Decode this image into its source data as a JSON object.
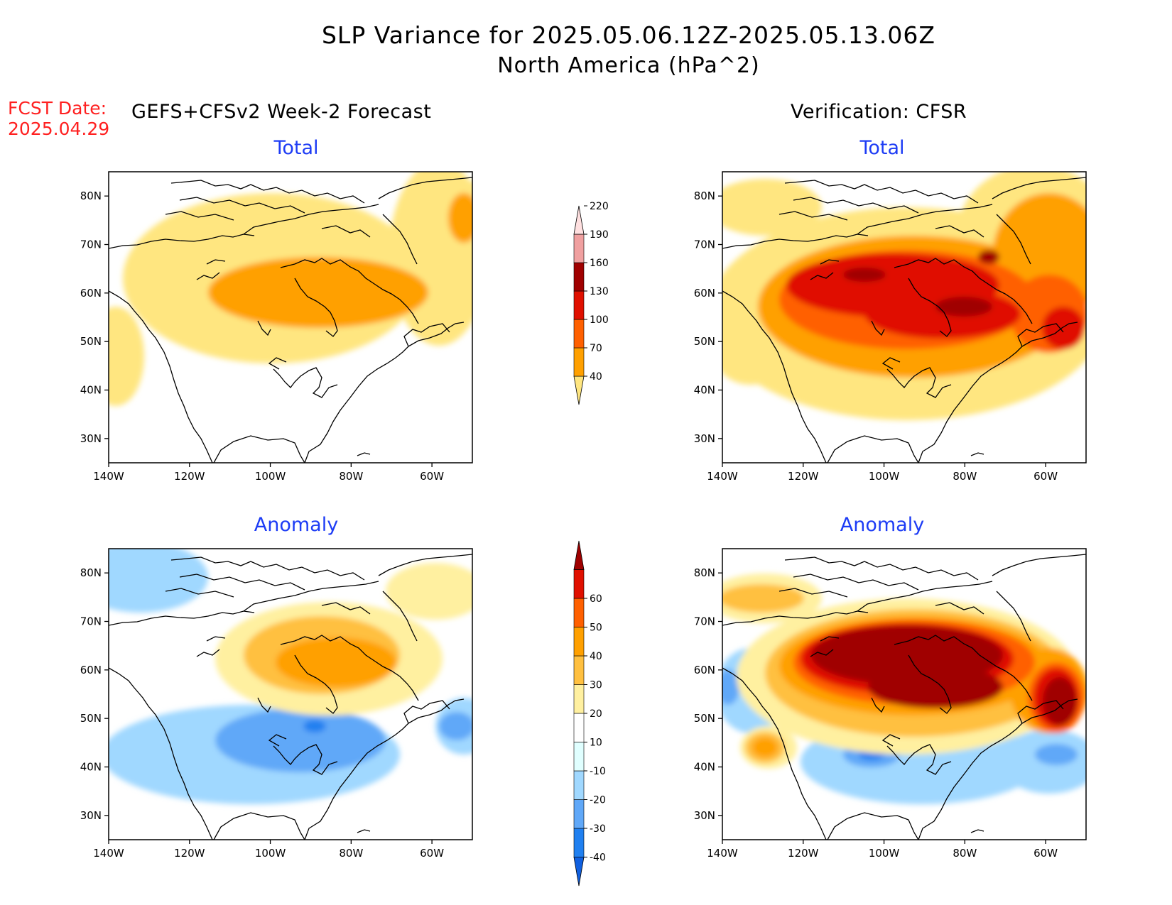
{
  "title": "SLP Variance for 2025.05.06.12Z-2025.05.13.06Z",
  "subtitle": "North America (hPa^2)",
  "fcst_date_label": "FCST Date:\n2025.04.29",
  "forecast_title": "GEFS+CFSv2 Week-2 Forecast",
  "verification_title": "Verification: CFSR",
  "panels": [
    {
      "id": "forecast-total",
      "label": "Total"
    },
    {
      "id": "verification-total",
      "label": "Total"
    },
    {
      "id": "forecast-anomaly",
      "label": "Anomaly"
    },
    {
      "id": "verification-anomaly",
      "label": "Anomaly"
    }
  ],
  "map_axes": {
    "lon_ticks": [
      "140W",
      "120W",
      "100W",
      "80W",
      "60W"
    ],
    "lat_ticks": [
      "80N",
      "70N",
      "60N",
      "50N",
      "40N",
      "30N"
    ],
    "lon_range": [
      -140,
      -50
    ],
    "lat_range": [
      25,
      85
    ]
  },
  "total_colorbar": {
    "levels": [
      "40",
      "70",
      "100",
      "130",
      "160",
      "190",
      "220"
    ],
    "colors": [
      "#ffe680",
      "#ffa000",
      "#ff6000",
      "#e01000",
      "#a00000",
      "#f0a0a0",
      "#ffe0e0"
    ]
  },
  "anomaly_colorbar": {
    "levels": [
      "-40",
      "-30",
      "-20",
      "-10",
      "10",
      "20",
      "30",
      "40",
      "50",
      "60"
    ],
    "colors": [
      "#1060e0",
      "#2080f0",
      "#60a8f8",
      "#a0d8ff",
      "#e0ffff",
      "#ffffff",
      "#fff0a0",
      "#ffc040",
      "#ffa000",
      "#ff6000",
      "#e01000",
      "#a00000"
    ]
  }
}
